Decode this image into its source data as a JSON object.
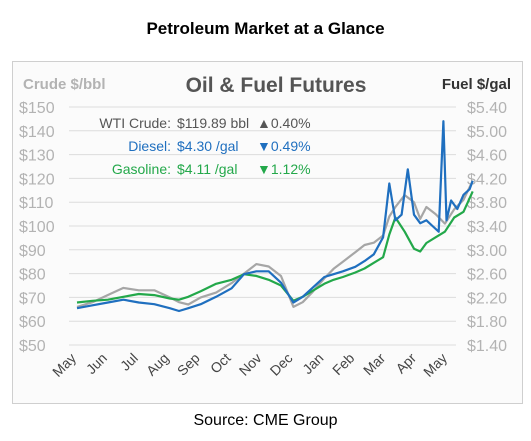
{
  "page": {
    "heading": "Petroleum Market at a Glance",
    "source": "Source: CME Group"
  },
  "colors": {
    "crude": "#a6a6a6",
    "diesel": "#1f6fbf",
    "gasoline": "#23a84a",
    "up": "#555555",
    "down": "#1f6fbf",
    "axis_text": "#b3b3b3"
  },
  "chart_data": {
    "type": "line",
    "title": "Oil & Fuel Futures",
    "ylabel_left": "Crude $/bbl",
    "ylabel_right": "Fuel $/gal",
    "ylim_left": [
      50,
      150
    ],
    "ylim_right": [
      1.4,
      5.6
    ],
    "left_ticks": [
      "$150",
      "$140",
      "$130",
      "$120",
      "$110",
      "$100",
      "$90",
      "$80",
      "$70",
      "$60",
      "$50"
    ],
    "right_ticks": [
      "$5.40",
      "$5.00",
      "$4.60",
      "$4.20",
      "$3.80",
      "$3.40",
      "$3.00",
      "$2.60",
      "$2.20",
      "$1.80",
      "$1.40"
    ],
    "months": [
      "May",
      "Jun",
      "Jul",
      "Aug",
      "Sep",
      "Oct",
      "Nov",
      "Dec",
      "Jan",
      "Feb",
      "Mar",
      "Apr",
      "May"
    ],
    "grid": "horizontal",
    "legend": [
      {
        "name": "WTI Crude:",
        "value": "$119.89 bbl",
        "change": "▲0.40%"
      },
      {
        "name": "Diesel:",
        "value": "$4.30 /gal",
        "change": "▼0.49%"
      },
      {
        "name": "Gasoline:",
        "value": "$4.11 /gal",
        "change": "▼1.12%"
      }
    ],
    "series": [
      {
        "name": "WTI Crude",
        "axis": "left",
        "x": [
          0,
          0.5,
          1,
          1.5,
          2,
          2.5,
          3,
          3.3,
          3.6,
          4,
          4.5,
          5,
          5.4,
          5.8,
          6.2,
          6.6,
          7,
          7.3,
          7.6,
          8,
          8.3,
          8.6,
          9,
          9.3,
          9.6,
          9.9,
          10.1,
          10.3,
          10.6,
          10.9,
          11.1,
          11.3,
          11.6,
          11.9,
          12.2,
          12.5,
          12.8
        ],
        "values": [
          66,
          68,
          71,
          74,
          73,
          73,
          70,
          68,
          67,
          70,
          72,
          76,
          80,
          84,
          83,
          79,
          66,
          68,
          72,
          78,
          82,
          85,
          89,
          92,
          93,
          96,
          104,
          108,
          113,
          110,
          103,
          108,
          105,
          101,
          107,
          111,
          119
        ]
      },
      {
        "name": "Diesel",
        "axis": "right",
        "x": [
          0,
          0.5,
          1,
          1.5,
          2,
          2.5,
          3,
          3.3,
          3.6,
          4,
          4.5,
          5,
          5.4,
          5.8,
          6.2,
          6.6,
          7,
          7.3,
          7.6,
          8,
          8.3,
          8.6,
          9,
          9.3,
          9.6,
          9.9,
          10.1,
          10.3,
          10.5,
          10.7,
          10.9,
          11.1,
          11.3,
          11.5,
          11.7,
          11.85,
          11.95,
          12.1,
          12.3,
          12.5,
          12.7,
          12.8
        ],
        "values": [
          2.05,
          2.1,
          2.15,
          2.2,
          2.15,
          2.12,
          2.05,
          2.0,
          2.05,
          2.12,
          2.25,
          2.4,
          2.65,
          2.7,
          2.7,
          2.5,
          2.15,
          2.25,
          2.4,
          2.6,
          2.65,
          2.7,
          2.78,
          2.88,
          3.0,
          3.3,
          4.25,
          3.6,
          3.7,
          4.5,
          3.7,
          3.55,
          3.6,
          3.5,
          3.4,
          5.35,
          3.6,
          3.95,
          3.8,
          4.05,
          4.15,
          4.3
        ]
      },
      {
        "name": "Gasoline",
        "axis": "right",
        "x": [
          0,
          0.5,
          1,
          1.5,
          2,
          2.5,
          3,
          3.3,
          3.6,
          4,
          4.5,
          5,
          5.4,
          5.8,
          6.2,
          6.6,
          7,
          7.3,
          7.6,
          8,
          8.3,
          8.6,
          9,
          9.3,
          9.6,
          9.9,
          10.1,
          10.3,
          10.6,
          10.9,
          11.1,
          11.3,
          11.6,
          11.9,
          12.2,
          12.5,
          12.8
        ],
        "values": [
          2.15,
          2.18,
          2.2,
          2.25,
          2.3,
          2.28,
          2.22,
          2.2,
          2.25,
          2.35,
          2.48,
          2.55,
          2.65,
          2.62,
          2.55,
          2.45,
          2.18,
          2.25,
          2.35,
          2.48,
          2.55,
          2.6,
          2.68,
          2.75,
          2.85,
          2.95,
          3.35,
          3.65,
          3.4,
          3.1,
          3.05,
          3.2,
          3.3,
          3.4,
          3.65,
          3.75,
          4.11
        ]
      }
    ]
  }
}
